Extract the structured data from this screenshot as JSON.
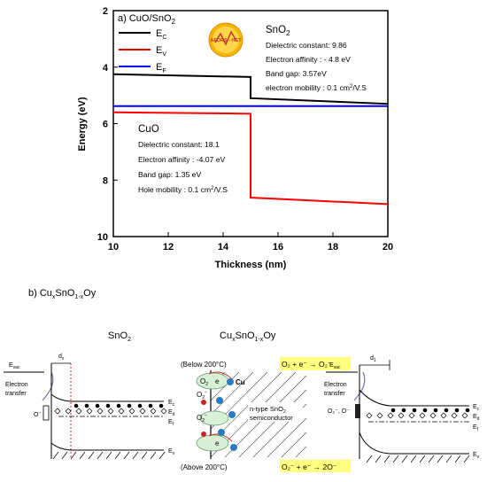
{
  "panel_a": {
    "label": "a) CuO/SnO",
    "label_sub": "2",
    "ylabel": "Energy (eV)",
    "xlabel": "Thickness (nm)",
    "logo_text": "AFORS - HET",
    "legend": [
      {
        "main": "E",
        "sub": "C",
        "color": "#000000"
      },
      {
        "main": "E",
        "sub": "V",
        "color": "#ff0000"
      },
      {
        "main": "E",
        "sub": "F",
        "color": "#0000ff"
      }
    ],
    "sno2_box": {
      "title": "SnO",
      "title_sub": "2",
      "lines": [
        "Dielectric constant: 9.86",
        "Electron affinity : - 4.8 eV",
        "Band gap: 3.57eV"
      ],
      "mobility_prefix": "electron mobility : 0.1 cm",
      "mobility_sup": "2",
      "mobility_suffix": "/V.S"
    },
    "cuo_box": {
      "title": "CuO",
      "lines": [
        "Dielectric constant: 18.1",
        "Electron affinity : -4.07 eV",
        "Band gap: 1.35 eV"
      ],
      "mobility_prefix": "Hole mobility : 0.1 cm",
      "mobility_sup": "2",
      "mobility_suffix": "/V.S"
    }
  },
  "chart_data": {
    "type": "line",
    "xlabel": "Thickness (nm)",
    "ylabel": "Energy (eV)",
    "xlim": [
      10,
      20
    ],
    "ylim": [
      10,
      2
    ],
    "y_inverted": true,
    "xticks": [
      "10",
      "12",
      "14",
      "16",
      "18",
      "20"
    ],
    "yticks": [
      "2",
      "4",
      "6",
      "8",
      "10"
    ],
    "grid": false,
    "legend_position": "top-left",
    "series": [
      {
        "name": "EC",
        "color": "#000000",
        "x": [
          10,
          15,
          15,
          20
        ],
        "y": [
          4.25,
          4.35,
          5.1,
          5.3
        ]
      },
      {
        "name": "EV",
        "color": "#ff0000",
        "x": [
          10,
          15,
          15,
          20
        ],
        "y": [
          5.6,
          5.65,
          8.62,
          8.85
        ]
      },
      {
        "name": "EF",
        "color": "#0000ff",
        "x": [
          10,
          20
        ],
        "y": [
          5.38,
          5.38
        ]
      }
    ]
  },
  "panel_b": {
    "label_prefix": "b) Cu",
    "label_x": "x",
    "label_mid": "SnO",
    "label_1x": "1-x",
    "label_suffix": "Oy",
    "left": {
      "title": "SnO",
      "title_sub": "2",
      "evac": "E",
      "evac_sub": "vac",
      "ds": "d",
      "ds_sub": "s",
      "transfer": [
        "Electron",
        "transfer"
      ],
      "o_label": "O",
      "o_sup": "−",
      "levels": [
        {
          "main": "E",
          "sub": "c"
        },
        {
          "main": "E",
          "sub": "d"
        },
        {
          "main": "E",
          "sub": "f"
        },
        {
          "main": "E",
          "sub": "v"
        }
      ]
    },
    "middle": {
      "title_prefix": "Cu",
      "title_x": "x",
      "title_mid": "SnO",
      "title_1x": "1-x",
      "title_suffix": "Oy",
      "below": "(Below 200°C)",
      "below_eq": "O₂ + e⁻ → O₂⁻",
      "above": "(Above 200°C)",
      "above_eq": "O₂⁻ + e⁻ → 2O⁻",
      "cu": "Cu",
      "o2": "O",
      "o2_sub": "2",
      "e_label": "e",
      "o2m": "O",
      "o2m_sub": "2",
      "o2m_sup": "−",
      "sc_lines": [
        "n-type SnO",
        "semiconductor"
      ],
      "sc_sub": "2"
    },
    "right": {
      "evac": "E",
      "evac_sub": "vac",
      "ds": "d",
      "ds_sub": "1",
      "transfer": [
        "Electron",
        "transfer"
      ],
      "o_label": "O₂⁻, O⁻",
      "levels": [
        {
          "main": "E",
          "sub": "c"
        },
        {
          "main": "E",
          "sub": "d"
        },
        {
          "main": "E",
          "sub": "f"
        },
        {
          "main": "E",
          "sub": "v"
        }
      ]
    }
  }
}
